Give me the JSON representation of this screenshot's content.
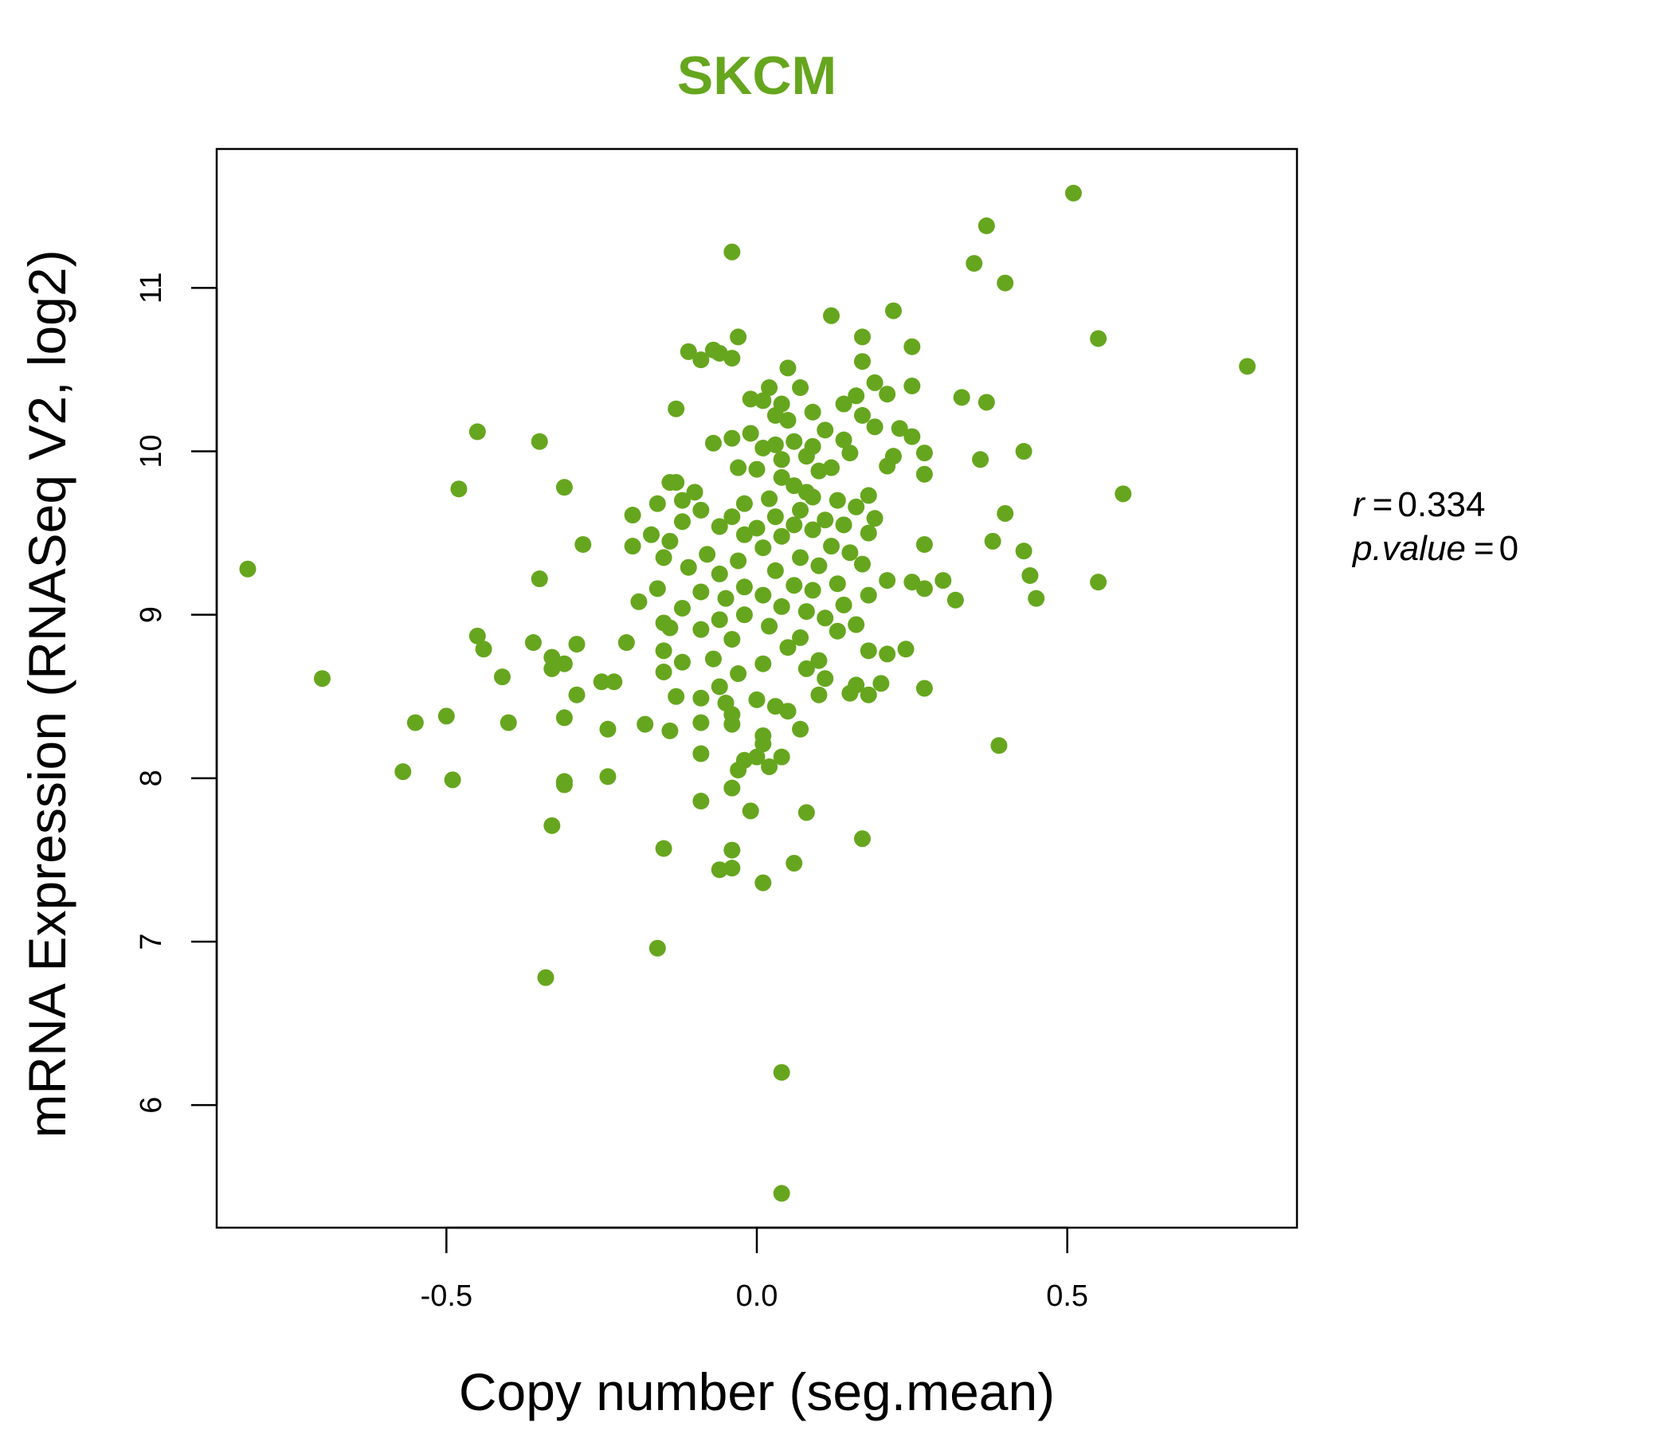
{
  "chart_data": {
    "type": "scatter",
    "title": "SKCM",
    "xlabel": "Copy number (seg.mean)",
    "ylabel": "mRNA Expression (RNASeq V2, log2)",
    "xlim": [
      -0.87,
      0.87
    ],
    "ylim": [
      5.25,
      11.85
    ],
    "xticks": [
      -0.5,
      0.0,
      0.5
    ],
    "xtick_labels": [
      "-0.5",
      "0.0",
      "0.5"
    ],
    "yticks": [
      6,
      7,
      8,
      9,
      10,
      11
    ],
    "ytick_labels": [
      "6",
      "7",
      "8",
      "9",
      "10",
      "11"
    ],
    "grid": false,
    "point_color": "#66a61e",
    "stats": {
      "r_label": "r",
      "r_value": "0.334",
      "p_label": "p.value",
      "p_value": "0"
    },
    "points": [
      [
        0.51,
        11.58
      ],
      [
        0.37,
        11.38
      ],
      [
        -0.04,
        11.22
      ],
      [
        0.35,
        11.15
      ],
      [
        0.4,
        11.03
      ],
      [
        0.22,
        10.86
      ],
      [
        0.12,
        10.83
      ],
      [
        0.55,
        10.69
      ],
      [
        0.17,
        10.7
      ],
      [
        -0.03,
        10.7
      ],
      [
        0.25,
        10.64
      ],
      [
        -0.11,
        10.61
      ],
      [
        -0.07,
        10.62
      ],
      [
        -0.06,
        10.6
      ],
      [
        -0.04,
        10.57
      ],
      [
        -0.09,
        10.56
      ],
      [
        0.79,
        10.52
      ],
      [
        0.17,
        10.55
      ],
      [
        0.05,
        10.51
      ],
      [
        0.19,
        10.42
      ],
      [
        0.25,
        10.4
      ],
      [
        0.07,
        10.39
      ],
      [
        0.02,
        10.39
      ],
      [
        0.16,
        10.34
      ],
      [
        0.21,
        10.35
      ],
      [
        0.33,
        10.33
      ],
      [
        0.37,
        10.3
      ],
      [
        -0.13,
        10.26
      ],
      [
        -0.01,
        10.32
      ],
      [
        0.01,
        10.31
      ],
      [
        0.04,
        10.29
      ],
      [
        0.14,
        10.29
      ],
      [
        0.17,
        10.22
      ],
      [
        0.09,
        10.24
      ],
      [
        0.03,
        10.22
      ],
      [
        0.05,
        10.19
      ],
      [
        0.19,
        10.15
      ],
      [
        0.23,
        10.14
      ],
      [
        0.11,
        10.13
      ],
      [
        -0.01,
        10.11
      ],
      [
        -0.45,
        10.12
      ],
      [
        -0.35,
        10.06
      ],
      [
        0.25,
        10.09
      ],
      [
        0.14,
        10.07
      ],
      [
        0.06,
        10.06
      ],
      [
        0.03,
        10.04
      ],
      [
        -0.04,
        10.08
      ],
      [
        -0.07,
        10.05
      ],
      [
        0.01,
        10.02
      ],
      [
        0.09,
        10.03
      ],
      [
        0.15,
        9.99
      ],
      [
        0.27,
        9.99
      ],
      [
        0.43,
        10.0
      ],
      [
        0.22,
        9.97
      ],
      [
        0.08,
        9.97
      ],
      [
        0.04,
        9.95
      ],
      [
        0.36,
        9.95
      ],
      [
        0.21,
        9.91
      ],
      [
        0.12,
        9.9
      ],
      [
        -0.03,
        9.9
      ],
      [
        0.0,
        9.89
      ],
      [
        0.27,
        9.86
      ],
      [
        0.1,
        9.88
      ],
      [
        0.04,
        9.84
      ],
      [
        -0.13,
        9.81
      ],
      [
        -0.14,
        9.81
      ],
      [
        -0.31,
        9.78
      ],
      [
        0.59,
        9.74
      ],
      [
        -0.48,
        9.77
      ],
      [
        0.06,
        9.79
      ],
      [
        0.08,
        9.75
      ],
      [
        -0.1,
        9.75
      ],
      [
        0.18,
        9.73
      ],
      [
        0.09,
        9.72
      ],
      [
        0.02,
        9.71
      ],
      [
        -0.12,
        9.7
      ],
      [
        0.13,
        9.7
      ],
      [
        -0.16,
        9.68
      ],
      [
        -0.02,
        9.68
      ],
      [
        0.16,
        9.66
      ],
      [
        -0.09,
        9.64
      ],
      [
        0.07,
        9.64
      ],
      [
        -0.2,
        9.61
      ],
      [
        0.4,
        9.62
      ],
      [
        0.19,
        9.59
      ],
      [
        0.03,
        9.6
      ],
      [
        -0.04,
        9.6
      ],
      [
        0.11,
        9.58
      ],
      [
        -0.12,
        9.57
      ],
      [
        0.14,
        9.55
      ],
      [
        0.06,
        9.55
      ],
      [
        -0.06,
        9.54
      ],
      [
        0.0,
        9.53
      ],
      [
        0.09,
        9.52
      ],
      [
        -0.17,
        9.49
      ],
      [
        0.18,
        9.5
      ],
      [
        -0.02,
        9.49
      ],
      [
        0.04,
        9.48
      ],
      [
        0.38,
        9.45
      ],
      [
        -0.14,
        9.45
      ],
      [
        0.27,
        9.43
      ],
      [
        -0.28,
        9.43
      ],
      [
        -0.2,
        9.42
      ],
      [
        0.12,
        9.42
      ],
      [
        0.01,
        9.41
      ],
      [
        0.43,
        9.39
      ],
      [
        0.15,
        9.38
      ],
      [
        -0.08,
        9.37
      ],
      [
        -0.15,
        9.35
      ],
      [
        0.07,
        9.35
      ],
      [
        -0.03,
        9.33
      ],
      [
        0.17,
        9.31
      ],
      [
        0.1,
        9.3
      ],
      [
        -0.11,
        9.29
      ],
      [
        0.55,
        9.2
      ],
      [
        0.44,
        9.24
      ],
      [
        -0.82,
        9.28
      ],
      [
        0.03,
        9.27
      ],
      [
        -0.06,
        9.25
      ],
      [
        0.21,
        9.21
      ],
      [
        0.25,
        9.2
      ],
      [
        0.3,
        9.21
      ],
      [
        -0.35,
        9.22
      ],
      [
        0.13,
        9.19
      ],
      [
        0.06,
        9.18
      ],
      [
        -0.02,
        9.17
      ],
      [
        -0.16,
        9.16
      ],
      [
        0.09,
        9.15
      ],
      [
        0.27,
        9.16
      ],
      [
        -0.09,
        9.14
      ],
      [
        0.01,
        9.12
      ],
      [
        0.18,
        9.12
      ],
      [
        -0.05,
        9.1
      ],
      [
        0.32,
        9.09
      ],
      [
        0.45,
        9.1
      ],
      [
        -0.19,
        9.08
      ],
      [
        0.14,
        9.06
      ],
      [
        0.04,
        9.05
      ],
      [
        -0.12,
        9.04
      ],
      [
        0.08,
        9.02
      ],
      [
        -0.02,
        9.0
      ],
      [
        0.11,
        8.98
      ],
      [
        -0.06,
        8.97
      ],
      [
        -0.15,
        8.95
      ],
      [
        0.16,
        8.94
      ],
      [
        0.02,
        8.93
      ],
      [
        -0.09,
        8.91
      ],
      [
        -0.14,
        8.92
      ],
      [
        0.13,
        8.9
      ],
      [
        -0.45,
        8.87
      ],
      [
        -0.36,
        8.83
      ],
      [
        -0.29,
        8.82
      ],
      [
        -0.21,
        8.83
      ],
      [
        0.07,
        8.86
      ],
      [
        -0.04,
        8.85
      ],
      [
        0.05,
        8.8
      ],
      [
        -0.44,
        8.79
      ],
      [
        -0.15,
        8.78
      ],
      [
        0.18,
        8.78
      ],
      [
        0.24,
        8.79
      ],
      [
        0.21,
        8.76
      ],
      [
        -0.33,
        8.74
      ],
      [
        -0.31,
        8.7
      ],
      [
        -0.07,
        8.73
      ],
      [
        0.1,
        8.72
      ],
      [
        -0.12,
        8.71
      ],
      [
        0.01,
        8.7
      ],
      [
        0.08,
        8.67
      ],
      [
        -0.33,
        8.67
      ],
      [
        -0.15,
        8.65
      ],
      [
        -0.03,
        8.64
      ],
      [
        -0.7,
        8.61
      ],
      [
        -0.41,
        8.62
      ],
      [
        0.11,
        8.61
      ],
      [
        -0.25,
        8.59
      ],
      [
        -0.23,
        8.59
      ],
      [
        0.2,
        8.58
      ],
      [
        0.16,
        8.57
      ],
      [
        0.27,
        8.55
      ],
      [
        -0.06,
        8.56
      ],
      [
        -0.29,
        8.51
      ],
      [
        0.15,
        8.52
      ],
      [
        0.1,
        8.51
      ],
      [
        0.18,
        8.51
      ],
      [
        -0.13,
        8.5
      ],
      [
        -0.09,
        8.49
      ],
      [
        0.0,
        8.48
      ],
      [
        -0.05,
        8.46
      ],
      [
        0.03,
        8.44
      ],
      [
        0.05,
        8.41
      ],
      [
        -0.04,
        8.39
      ],
      [
        -0.5,
        8.38
      ],
      [
        -0.31,
        8.37
      ],
      [
        -0.55,
        8.34
      ],
      [
        -0.4,
        8.34
      ],
      [
        -0.09,
        8.34
      ],
      [
        -0.18,
        8.33
      ],
      [
        -0.04,
        8.33
      ],
      [
        -0.24,
        8.3
      ],
      [
        -0.14,
        8.29
      ],
      [
        0.07,
        8.3
      ],
      [
        0.01,
        8.26
      ],
      [
        0.01,
        8.21
      ],
      [
        0.39,
        8.2
      ],
      [
        -0.09,
        8.15
      ],
      [
        0.0,
        8.13
      ],
      [
        0.04,
        8.13
      ],
      [
        -0.02,
        8.11
      ],
      [
        0.02,
        8.07
      ],
      [
        -0.03,
        8.05
      ],
      [
        -0.57,
        8.04
      ],
      [
        -0.24,
        8.01
      ],
      [
        -0.49,
        7.99
      ],
      [
        -0.31,
        7.98
      ],
      [
        -0.31,
        7.96
      ],
      [
        -0.04,
        7.94
      ],
      [
        -0.09,
        7.86
      ],
      [
        -0.01,
        7.8
      ],
      [
        0.08,
        7.79
      ],
      [
        -0.33,
        7.71
      ],
      [
        0.17,
        7.63
      ],
      [
        -0.15,
        7.57
      ],
      [
        -0.04,
        7.56
      ],
      [
        0.06,
        7.48
      ],
      [
        -0.04,
        7.45
      ],
      [
        -0.06,
        7.44
      ],
      [
        0.01,
        7.36
      ],
      [
        -0.16,
        6.96
      ],
      [
        -0.34,
        6.78
      ],
      [
        0.04,
        6.2
      ],
      [
        0.04,
        5.46
      ]
    ]
  }
}
